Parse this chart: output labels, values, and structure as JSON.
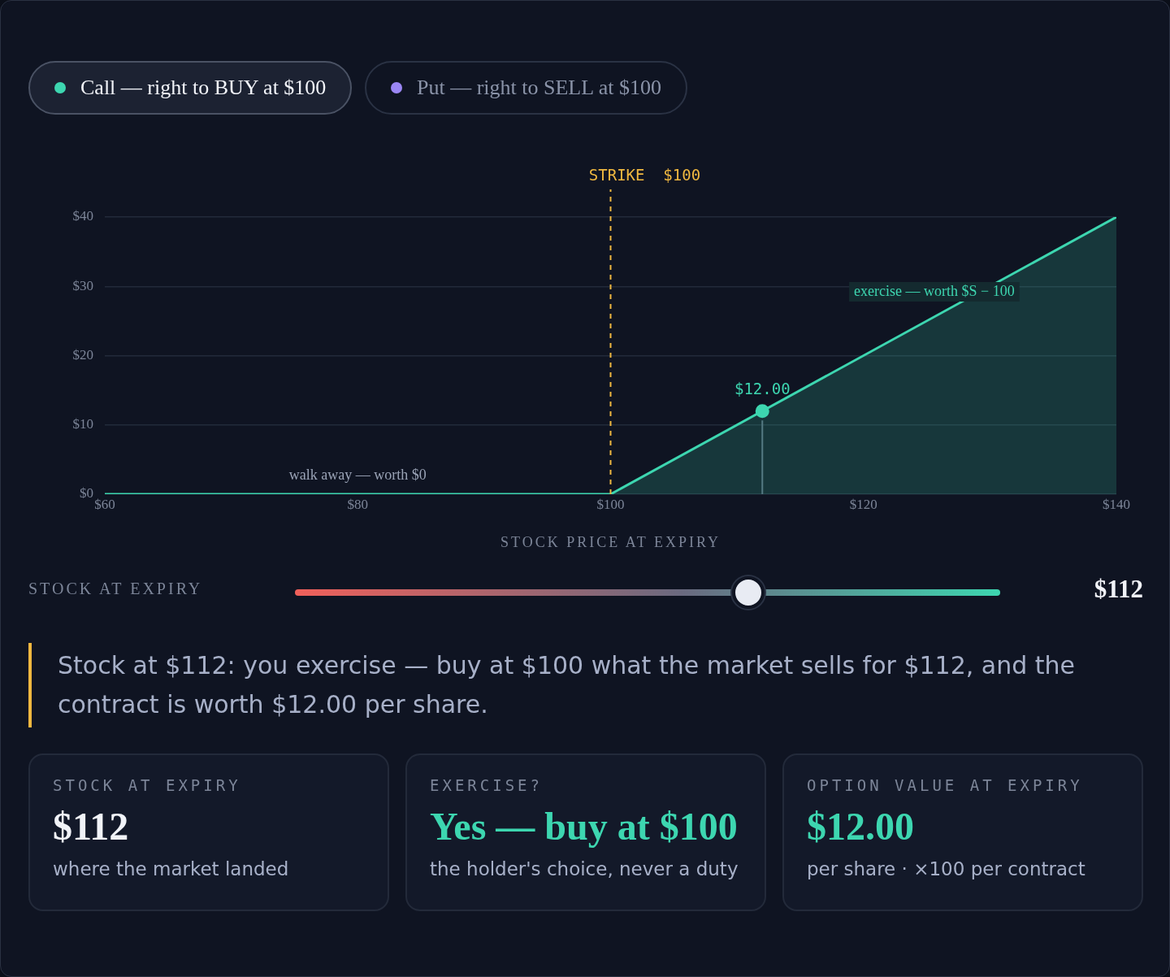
{
  "chart_data": [
    {
      "type": "other",
      "annotations": [
        "Call — right to BUY at $100",
        "Put — right to SELL at $100"
      ],
      "colors": [
        "#3dd6b0",
        "#9b87f5"
      ]
    },
    {
      "type": "area",
      "xlabel": "STOCK PRICE AT EXPIRY",
      "xlim": [
        60,
        140
      ],
      "ylim": [
        0,
        40
      ],
      "xticks": [
        {
          "value": 60,
          "label": "$60"
        },
        {
          "value": 80,
          "label": "$80"
        },
        {
          "value": 100,
          "label": "$100"
        },
        {
          "value": 120,
          "label": "$120"
        },
        {
          "value": 140,
          "label": "$140"
        }
      ],
      "yticks": [
        {
          "value": 0,
          "label": "$0"
        },
        {
          "value": 10,
          "label": "$10"
        },
        {
          "value": 20,
          "label": "$20"
        },
        {
          "value": 30,
          "label": "$30"
        },
        {
          "value": 40,
          "label": "$40"
        }
      ],
      "grid": "y",
      "legend": false,
      "series": [
        {
          "type": "area",
          "color": "#3dd6b0",
          "x": [
            60,
            100,
            140
          ],
          "values": [
            0,
            0,
            40
          ]
        },
        {
          "type": "lollipop",
          "color": "#3dd6b0",
          "x": [
            112
          ],
          "values": [
            12
          ],
          "value_labels": [
            "$12.00"
          ]
        }
      ],
      "ref_lines": [
        {
          "axis": "x",
          "value": 100,
          "label": "STRIKE  $100",
          "color": "#f0b840",
          "line_style": "dashed"
        }
      ],
      "annotations": [
        "walk away — worth $0",
        "exercise — worth $S − 100"
      ]
    },
    {
      "type": "other",
      "annotations": [
        "STOCK AT EXPIRY",
        "$112",
        "Stock at $112: you exercise — buy at $100 what the market sells for $112, and the contract is worth $12.00 per share."
      ]
    },
    {
      "type": "other",
      "title": "STOCK AT EXPIRY",
      "subtitle": "$112",
      "annotations": [
        "where the market landed"
      ],
      "color": "#f1f3f8"
    },
    {
      "type": "other",
      "title": "EXERCISE?",
      "subtitle": "Yes — buy at $100",
      "annotations": [
        "the holder's choice, never a duty"
      ],
      "color": "#3dd6b0"
    },
    {
      "type": "other",
      "title": "OPTION VALUE AT EXPIRY",
      "subtitle": "$12.00",
      "annotations": [
        "per share · ×100 per contract"
      ],
      "color": "#3dd6b0"
    }
  ]
}
